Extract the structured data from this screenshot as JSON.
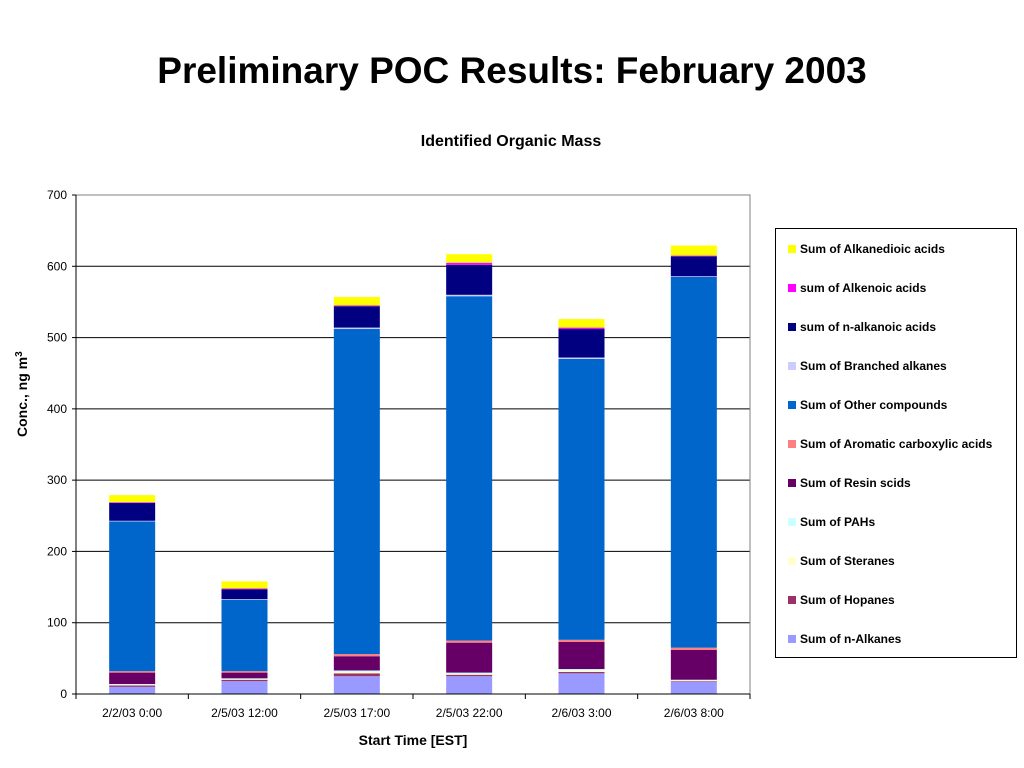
{
  "page": {
    "title": "Preliminary POC Results: February 2003"
  },
  "chart_data": {
    "type": "bar",
    "stacked": true,
    "title": "Identified Organic Mass",
    "xlabel": "Start Time [EST]",
    "ylabel": "Conc., ng m",
    "ylabel_superscript": "3",
    "ylim": [
      0,
      700
    ],
    "yticks": [
      0,
      100,
      200,
      300,
      400,
      500,
      600,
      700
    ],
    "grid": true,
    "legend_position": "right",
    "categories": [
      "2/2/03 0:00",
      "2/5/03 12:00",
      "2/5/03 17:00",
      "2/5/03 22:00",
      "2/6/03 3:00",
      "2/6/03 8:00"
    ],
    "series": [
      {
        "name": "Sum of n-Alkanes",
        "color": "#9999ff",
        "values": [
          10,
          18,
          25,
          25,
          29,
          17
        ]
      },
      {
        "name": "Sum of Hopanes",
        "color": "#993366",
        "values": [
          2,
          2,
          4,
          2,
          2,
          1
        ]
      },
      {
        "name": "Sum of Steranes",
        "color": "#ffffcc",
        "values": [
          1,
          1,
          2,
          1,
          2,
          1
        ]
      },
      {
        "name": "Sum of PAHs",
        "color": "#ccffff",
        "values": [
          1,
          1,
          2,
          2,
          2,
          1
        ]
      },
      {
        "name": "Sum of Resin scids",
        "color": "#660066",
        "values": [
          16,
          8,
          20,
          42,
          38,
          42
        ]
      },
      {
        "name": "Sum of Aromatic carboxylic acids",
        "color": "#ff8080",
        "values": [
          2,
          2,
          3,
          3,
          3,
          3
        ]
      },
      {
        "name": "Sum of Other compounds",
        "color": "#0066cc",
        "values": [
          210,
          100,
          456,
          483,
          394,
          520
        ]
      },
      {
        "name": "Sum of Branched alkanes",
        "color": "#ccccff",
        "values": [
          1,
          1,
          2,
          2,
          2,
          1
        ]
      },
      {
        "name": "sum of n-alkanoic acids",
        "color": "#000080",
        "values": [
          25,
          14,
          30,
          42,
          40,
          28
        ]
      },
      {
        "name": "sum of Alkenoic acids",
        "color": "#ff00ff",
        "values": [
          1,
          1,
          1,
          3,
          2,
          1
        ]
      },
      {
        "name": "Sum of Alkanedioic acids",
        "color": "#ffff00",
        "values": [
          10,
          10,
          12,
          12,
          12,
          14
        ]
      }
    ]
  }
}
